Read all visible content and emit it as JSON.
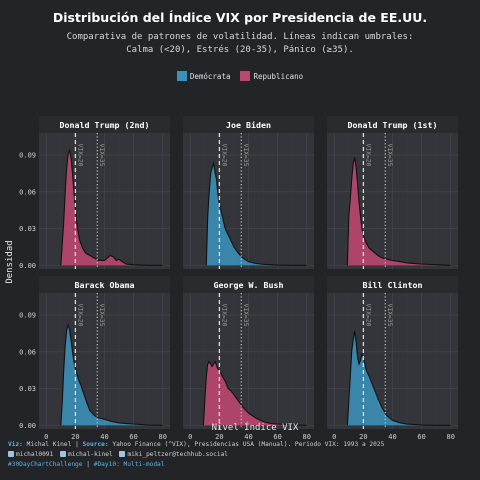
{
  "title": "Distribución del Índice VIX por Presidencia de EE.UU.",
  "subtitle_line1": "Comparativa de patrones de volatilidad. Líneas indican umbrales:",
  "subtitle_line2": "Calma (<20), Estrés (20-35), Pánico (≥35).",
  "legend": [
    {
      "label": "Demócrata",
      "color": "#3b8fb8"
    },
    {
      "label": "Republicano",
      "color": "#b9476f"
    }
  ],
  "footer": {
    "viz_key": "Viz:",
    "viz_val": "Michal Kinel",
    "sep": "|",
    "source_key": "Source:",
    "source_val": "Yahoo Finance (^VIX), Presidencias USA (Manual). Periodo VIX: 1993 a 2025",
    "social1": "michal0091",
    "social2": "michal-kinel",
    "social3": "miki_peltzer@techhub.social",
    "tag1": "#30DayChartChallenge",
    "tag_sep": "|",
    "tag2": "#Day10: Multi-modal"
  },
  "chart_data": {
    "type": "area",
    "xlabel": "Nivel Índice VIX",
    "ylabel": "Densidad",
    "xlim": [
      -5,
      85
    ],
    "ylim": [
      -0.003,
      0.108
    ],
    "xticks": [
      0,
      20,
      40,
      60,
      80
    ],
    "yticks": [
      0.0,
      0.03,
      0.06,
      0.09
    ],
    "ytick_labels": [
      "0.00",
      "0.03",
      "0.06",
      "0.09"
    ],
    "thresholds": [
      {
        "x": 20,
        "label": "VIX=20",
        "style": "dashed"
      },
      {
        "x": 35,
        "label": "VIX=35",
        "style": "dotted"
      }
    ],
    "grid": true,
    "legend_position": "top-center",
    "panels": [
      {
        "name": "Donald Trump (2nd)",
        "party": "Republicano",
        "x": [
          10,
          12,
          13,
          14,
          15,
          16,
          17,
          18,
          19,
          20,
          21,
          22,
          23,
          25,
          27,
          30,
          33,
          36,
          40,
          42,
          44,
          46,
          48,
          50,
          52,
          55,
          60,
          70,
          80
        ],
        "y": [
          0.0,
          0.035,
          0.06,
          0.08,
          0.091,
          0.094,
          0.088,
          0.075,
          0.06,
          0.045,
          0.034,
          0.026,
          0.02,
          0.014,
          0.01,
          0.008,
          0.006,
          0.004,
          0.004,
          0.006,
          0.008,
          0.007,
          0.004,
          0.005,
          0.003,
          0.001,
          0.0005,
          0.0,
          0.0
        ]
      },
      {
        "name": "Joe Biden",
        "party": "Demócrata",
        "x": [
          11,
          12,
          13,
          14,
          15,
          16,
          17,
          18,
          19,
          20,
          22,
          24,
          26,
          28,
          30,
          33,
          36,
          40,
          45,
          50,
          60,
          70,
          80
        ],
        "y": [
          0.0,
          0.04,
          0.06,
          0.075,
          0.08,
          0.083,
          0.076,
          0.07,
          0.058,
          0.05,
          0.04,
          0.03,
          0.025,
          0.02,
          0.015,
          0.01,
          0.006,
          0.003,
          0.0015,
          0.0008,
          0.0003,
          0.0,
          0.0
        ]
      },
      {
        "name": "Donald Trump (1st)",
        "party": "Republicano",
        "x": [
          9,
          10,
          11,
          12,
          13,
          14,
          15,
          16,
          17,
          18,
          19,
          20,
          22,
          24,
          26,
          28,
          30,
          33,
          36,
          40,
          45,
          50,
          60,
          70,
          80
        ],
        "y": [
          0.0,
          0.04,
          0.055,
          0.07,
          0.083,
          0.088,
          0.08,
          0.066,
          0.052,
          0.04,
          0.03,
          0.024,
          0.018,
          0.014,
          0.012,
          0.01,
          0.008,
          0.006,
          0.005,
          0.004,
          0.003,
          0.002,
          0.001,
          0.0005,
          0.0
        ]
      },
      {
        "name": "Barack Obama",
        "party": "Demócrata",
        "x": [
          10,
          11,
          12,
          13,
          14,
          15,
          16,
          17,
          18,
          19,
          20,
          22,
          24,
          26,
          28,
          30,
          33,
          36,
          40,
          45,
          50,
          60,
          70,
          80
        ],
        "y": [
          0.0,
          0.02,
          0.045,
          0.065,
          0.078,
          0.082,
          0.078,
          0.07,
          0.06,
          0.052,
          0.046,
          0.038,
          0.032,
          0.025,
          0.018,
          0.012,
          0.008,
          0.006,
          0.005,
          0.003,
          0.002,
          0.001,
          0.0003,
          0.0
        ]
      },
      {
        "name": "George W. Bush",
        "party": "Republicano",
        "x": [
          9,
          10,
          11,
          12,
          13,
          14,
          15,
          16,
          17,
          18,
          19,
          20,
          22,
          24,
          26,
          28,
          30,
          33,
          36,
          40,
          45,
          50,
          55,
          60,
          70,
          80
        ],
        "y": [
          0.0,
          0.02,
          0.04,
          0.05,
          0.052,
          0.05,
          0.048,
          0.05,
          0.052,
          0.049,
          0.046,
          0.045,
          0.04,
          0.036,
          0.03,
          0.028,
          0.025,
          0.02,
          0.015,
          0.01,
          0.006,
          0.003,
          0.0015,
          0.001,
          0.0004,
          0.0
        ]
      },
      {
        "name": "Bill Clinton",
        "party": "Demócrata",
        "x": [
          9,
          10,
          11,
          12,
          13,
          14,
          15,
          16,
          17,
          18,
          19,
          20,
          22,
          24,
          26,
          28,
          30,
          33,
          36,
          40,
          45,
          50,
          60,
          70,
          80
        ],
        "y": [
          0.0,
          0.02,
          0.04,
          0.06,
          0.07,
          0.077,
          0.068,
          0.055,
          0.05,
          0.053,
          0.058,
          0.055,
          0.045,
          0.04,
          0.034,
          0.028,
          0.022,
          0.014,
          0.008,
          0.004,
          0.002,
          0.001,
          0.0003,
          0.0,
          0.0
        ]
      }
    ]
  }
}
